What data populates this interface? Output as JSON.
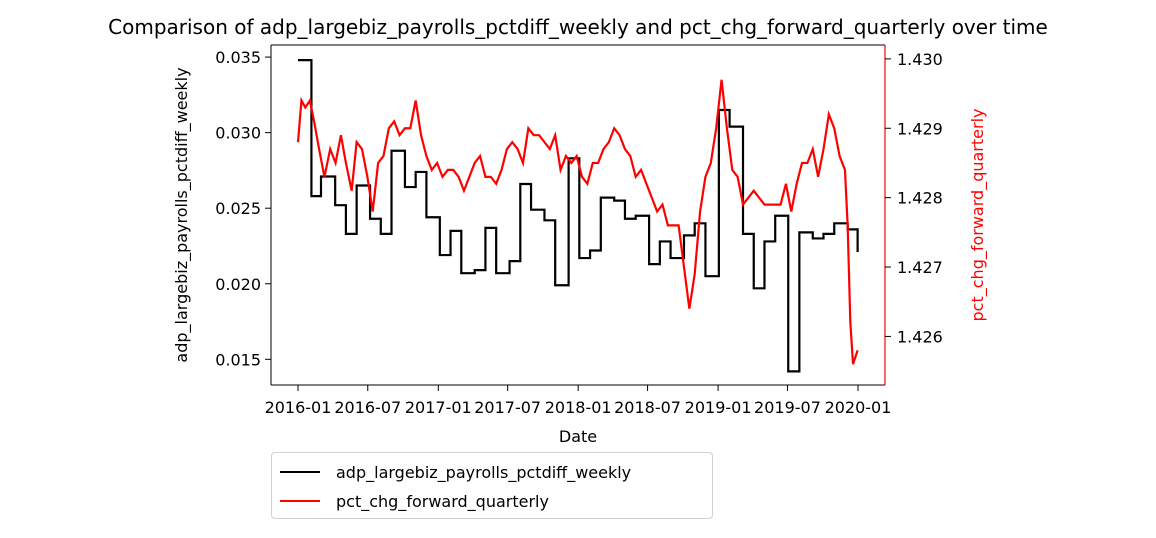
{
  "colors": {
    "series_1": "#000000",
    "series_2": "#ff0000",
    "axis": "#000000"
  },
  "chart_data": {
    "type": "line",
    "title": "Comparison of adp_largebiz_payrolls_pctdiff_weekly and pct_chg_forward_quarterly over time",
    "xlabel": "Date",
    "ylabel_left": "adp_largebiz_payrolls_pctdiff_weekly",
    "ylabel_right": "pct_chg_forward_quarterly",
    "xlim": [
      "2016-01-01",
      "2020-01-01"
    ],
    "ylim_left": [
      0.0133,
      0.0358
    ],
    "ylim_right": [
      1.4253,
      1.4302
    ],
    "x_ticks": [
      "2016-01",
      "2016-07",
      "2017-01",
      "2017-07",
      "2018-01",
      "2018-07",
      "2019-01",
      "2019-07",
      "2020-01"
    ],
    "y_ticks_left": [
      "0.015",
      "0.020",
      "0.025",
      "0.030",
      "0.035"
    ],
    "y_ticks_right": [
      "1.426",
      "1.427",
      "1.428",
      "1.429",
      "1.430"
    ],
    "grid": false,
    "legend_position": "below plot, left",
    "series": [
      {
        "name": "adp_largebiz_payrolls_pctdiff_weekly",
        "axis": "left",
        "step": true,
        "x": [
          "2016-01-01",
          "2016-01-20",
          "2016-02-05",
          "2016-03-01",
          "2016-04-07",
          "2016-05-05",
          "2016-06-02",
          "2016-07-07",
          "2016-08-04",
          "2016-09-01",
          "2016-10-06",
          "2016-11-03",
          "2016-12-01",
          "2017-01-05",
          "2017-02-02",
          "2017-03-02",
          "2017-04-06",
          "2017-05-04",
          "2017-06-01",
          "2017-07-06",
          "2017-08-03",
          "2017-08-31",
          "2017-10-05",
          "2017-11-02",
          "2017-12-07",
          "2018-01-04",
          "2018-02-01",
          "2018-03-01",
          "2018-04-05",
          "2018-05-03",
          "2018-05-31",
          "2018-07-05",
          "2018-08-02",
          "2018-08-30",
          "2018-10-04",
          "2018-11-01",
          "2018-11-29",
          "2019-01-03",
          "2019-01-31",
          "2019-03-07",
          "2019-04-04",
          "2019-05-02",
          "2019-05-30",
          "2019-07-03",
          "2019-08-01",
          "2019-09-05",
          "2019-10-03",
          "2019-10-31",
          "2019-12-05",
          "2019-12-31"
        ],
        "values": [
          0.0348,
          0.0348,
          0.0258,
          0.0271,
          0.0252,
          0.0233,
          0.0265,
          0.0243,
          0.0233,
          0.0288,
          0.0264,
          0.0274,
          0.0244,
          0.0219,
          0.0235,
          0.0207,
          0.0209,
          0.0237,
          0.0207,
          0.0215,
          0.0266,
          0.0249,
          0.0242,
          0.0199,
          0.0283,
          0.0217,
          0.0222,
          0.0257,
          0.0255,
          0.0243,
          0.0245,
          0.0213,
          0.0228,
          0.0217,
          0.0232,
          0.024,
          0.0205,
          0.0315,
          0.0304,
          0.0233,
          0.0197,
          0.0228,
          0.0245,
          0.0142,
          0.0234,
          0.023,
          0.0233,
          0.024,
          0.0236,
          0.0221
        ]
      },
      {
        "name": "pct_chg_forward_quarterly",
        "axis": "right",
        "step": false,
        "x": [
          "2016-01-01",
          "2016-01-10",
          "2016-01-20",
          "2016-02-01",
          "2016-02-12",
          "2016-02-25",
          "2016-03-10",
          "2016-03-25",
          "2016-04-08",
          "2016-04-22",
          "2016-05-05",
          "2016-05-20",
          "2016-06-02",
          "2016-06-16",
          "2016-06-30",
          "2016-07-14",
          "2016-07-28",
          "2016-08-11",
          "2016-08-25",
          "2016-09-08",
          "2016-09-22",
          "2016-10-06",
          "2016-10-20",
          "2016-11-03",
          "2016-11-17",
          "2016-12-01",
          "2016-12-15",
          "2016-12-29",
          "2017-01-12",
          "2017-01-26",
          "2017-02-09",
          "2017-02-23",
          "2017-03-09",
          "2017-03-23",
          "2017-04-06",
          "2017-04-20",
          "2017-05-04",
          "2017-05-18",
          "2017-06-01",
          "2017-06-15",
          "2017-06-29",
          "2017-07-13",
          "2017-07-27",
          "2017-08-10",
          "2017-08-24",
          "2017-09-07",
          "2017-09-21",
          "2017-10-05",
          "2017-10-19",
          "2017-11-02",
          "2017-11-16",
          "2017-11-30",
          "2017-12-14",
          "2017-12-28",
          "2018-01-11",
          "2018-01-25",
          "2018-02-08",
          "2018-02-22",
          "2018-03-08",
          "2018-03-22",
          "2018-04-05",
          "2018-04-19",
          "2018-05-03",
          "2018-05-17",
          "2018-05-31",
          "2018-06-14",
          "2018-06-28",
          "2018-07-12",
          "2018-07-26",
          "2018-08-09",
          "2018-08-23",
          "2018-09-06",
          "2018-09-20",
          "2018-10-04",
          "2018-10-18",
          "2018-11-01",
          "2018-11-15",
          "2018-11-29",
          "2018-12-13",
          "2018-12-27",
          "2019-01-10",
          "2019-01-24",
          "2019-02-07",
          "2019-02-21",
          "2019-03-07",
          "2019-03-21",
          "2019-04-04",
          "2019-04-18",
          "2019-05-02",
          "2019-05-16",
          "2019-05-30",
          "2019-06-13",
          "2019-06-27",
          "2019-07-11",
          "2019-07-25",
          "2019-08-08",
          "2019-08-22",
          "2019-09-05",
          "2019-09-19",
          "2019-10-03",
          "2019-10-17",
          "2019-10-31",
          "2019-11-14",
          "2019-11-28",
          "2019-12-05",
          "2019-12-12",
          "2019-12-19",
          "2019-12-31"
        ],
        "values": [
          1.4288,
          1.4294,
          1.4293,
          1.4294,
          1.4291,
          1.4287,
          1.4283,
          1.4287,
          1.4285,
          1.4289,
          1.4285,
          1.4281,
          1.4288,
          1.4287,
          1.4283,
          1.4278,
          1.4285,
          1.4286,
          1.429,
          1.4291,
          1.4289,
          1.429,
          1.429,
          1.4294,
          1.4289,
          1.4286,
          1.4284,
          1.4285,
          1.4283,
          1.4284,
          1.4284,
          1.4283,
          1.4281,
          1.4283,
          1.4285,
          1.4286,
          1.4283,
          1.4283,
          1.4282,
          1.4284,
          1.4287,
          1.4288,
          1.4287,
          1.4285,
          1.429,
          1.4289,
          1.4289,
          1.4288,
          1.4287,
          1.4289,
          1.4284,
          1.4286,
          1.4285,
          1.4286,
          1.4283,
          1.4282,
          1.4285,
          1.4285,
          1.4287,
          1.4288,
          1.429,
          1.4289,
          1.4287,
          1.4286,
          1.4283,
          1.4284,
          1.4282,
          1.428,
          1.4278,
          1.4279,
          1.4276,
          1.4276,
          1.4276,
          1.427,
          1.4264,
          1.4269,
          1.4278,
          1.4283,
          1.4285,
          1.429,
          1.4297,
          1.429,
          1.4284,
          1.4283,
          1.4279,
          1.428,
          1.4281,
          1.428,
          1.4279,
          1.4279,
          1.4279,
          1.4279,
          1.4282,
          1.4278,
          1.4282,
          1.4285,
          1.4285,
          1.4287,
          1.4283,
          1.4287,
          1.4292,
          1.429,
          1.4286,
          1.4284,
          1.4276,
          1.4262,
          1.4256,
          1.4258
        ]
      }
    ]
  }
}
